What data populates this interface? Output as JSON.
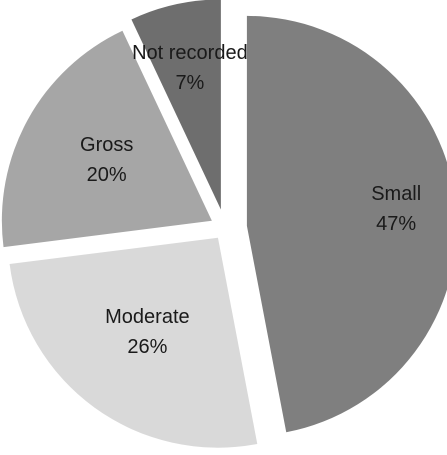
{
  "chart_data": {
    "type": "pie",
    "exploded": true,
    "start": "12 o'clock",
    "direction": "clockwise",
    "legend": "none",
    "slices": [
      {
        "label": "Small",
        "value": 47,
        "value_label": "47%",
        "color": "#7f7f7f"
      },
      {
        "label": "Moderate",
        "value": 26,
        "value_label": "26%",
        "color": "#d9d9d9"
      },
      {
        "label": "Gross",
        "value": 20,
        "value_label": "20%",
        "color": "#a6a6a6"
      },
      {
        "label": "Not recorded",
        "value": 7,
        "value_label": "7%",
        "color": "#6e6e6e"
      }
    ]
  }
}
